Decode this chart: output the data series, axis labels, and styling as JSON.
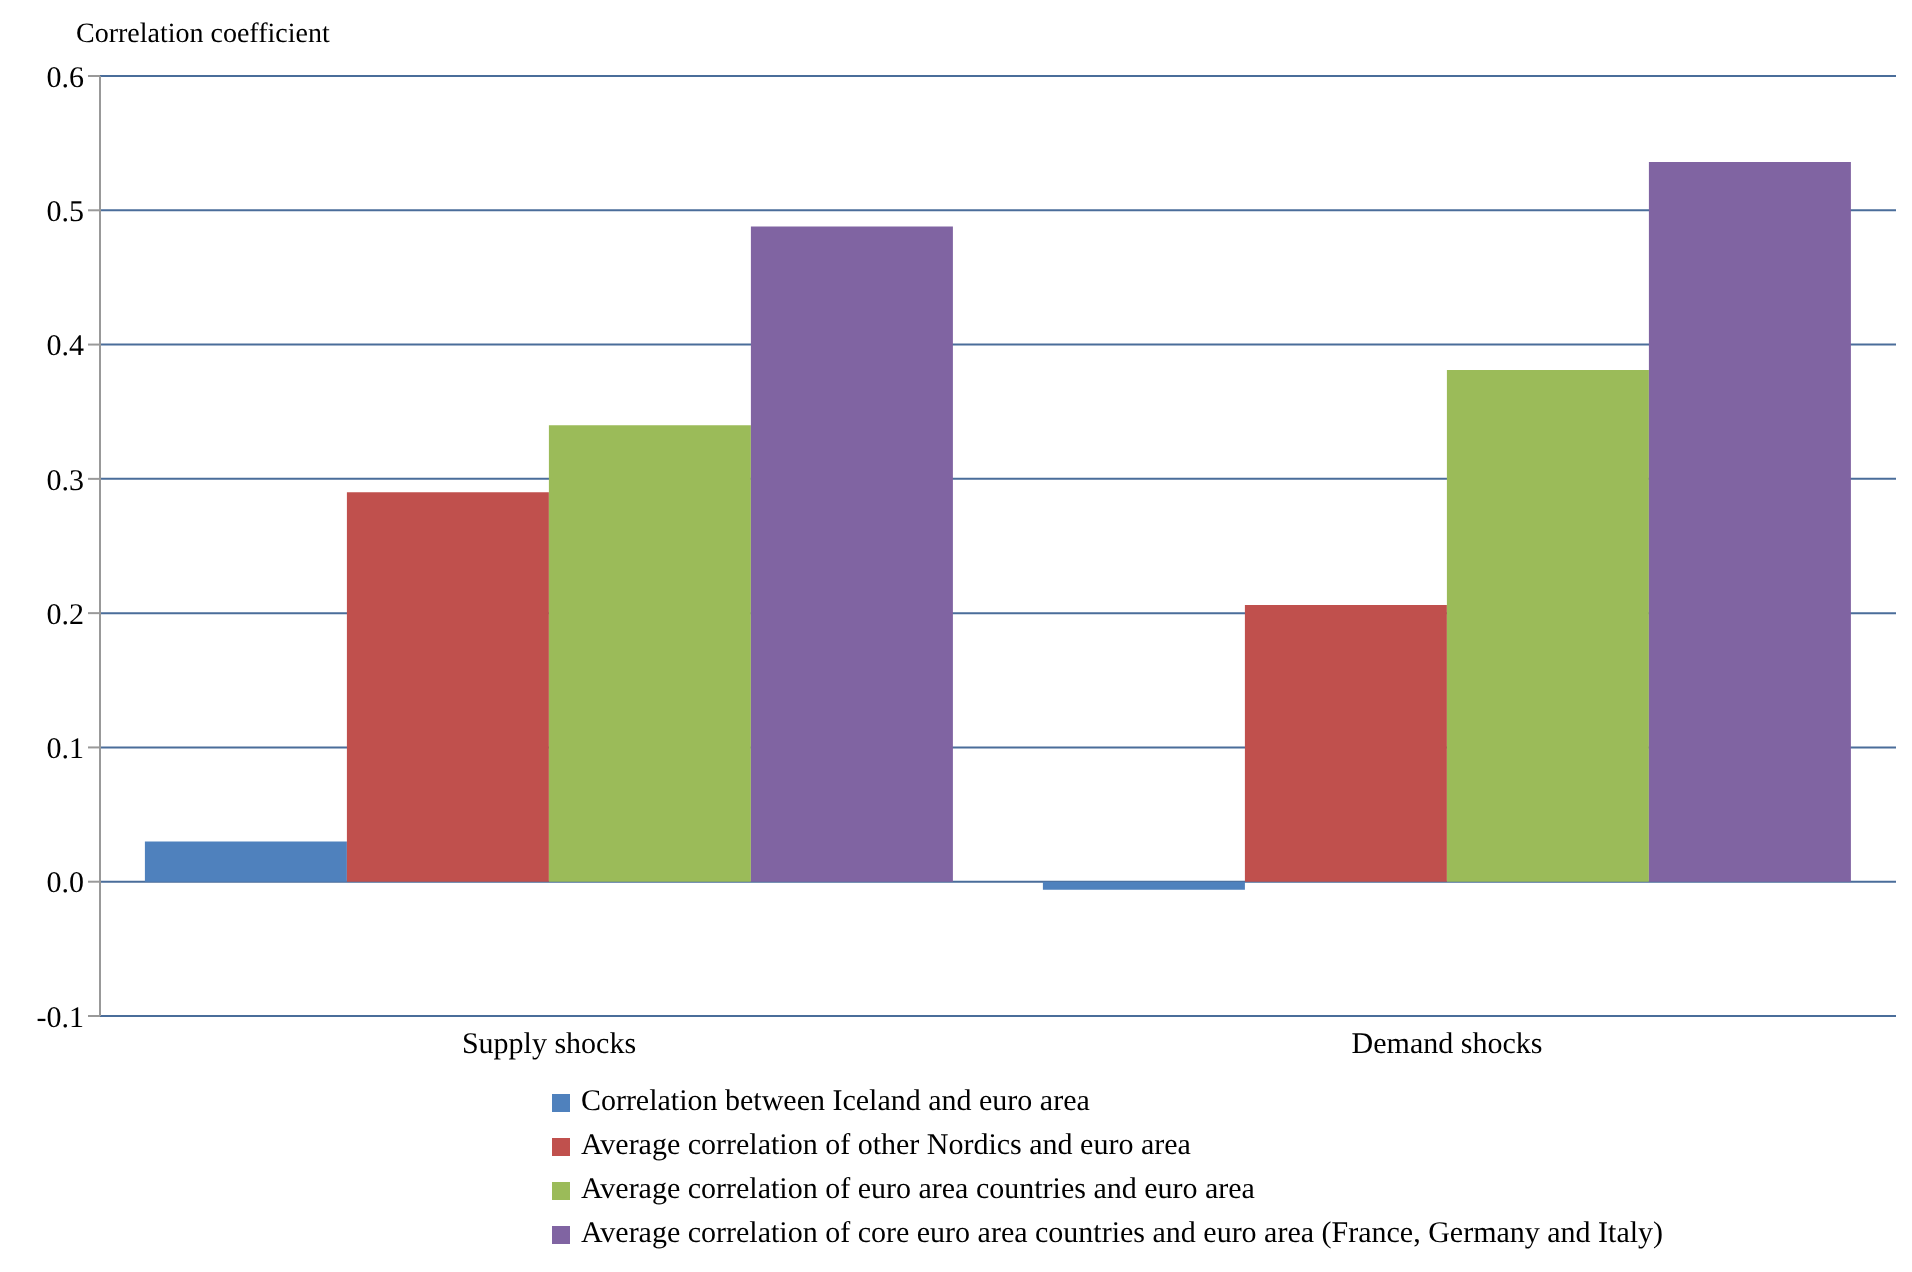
{
  "chart_data": {
    "type": "bar",
    "ylabel": "Correlation coefficient",
    "categories": [
      "Supply shocks",
      "Demand shocks"
    ],
    "series": [
      {
        "name": "Correlation between Iceland and euro area",
        "color": "#4f81bd",
        "values": [
          0.03,
          -0.006
        ]
      },
      {
        "name": "Average correlation of other Nordics and euro area",
        "color": "#c0504d",
        "values": [
          0.29,
          0.206
        ]
      },
      {
        "name": "Average correlation of euro area countries and euro area",
        "color": "#9bbb59",
        "values": [
          0.34,
          0.381
        ]
      },
      {
        "name": "Average correlation of core euro area countries and euro area (France, Germany and Italy)",
        "color": "#8064a2",
        "values": [
          0.488,
          0.536
        ]
      }
    ],
    "ylim": [
      -0.1,
      0.6
    ],
    "yticks": [
      -0.1,
      {
        "value": 0,
        "label": "0.0"
      },
      0.1,
      0.2,
      0.3,
      0.4,
      0.5,
      0.6
    ],
    "grid": "y",
    "legend": "bottom"
  }
}
